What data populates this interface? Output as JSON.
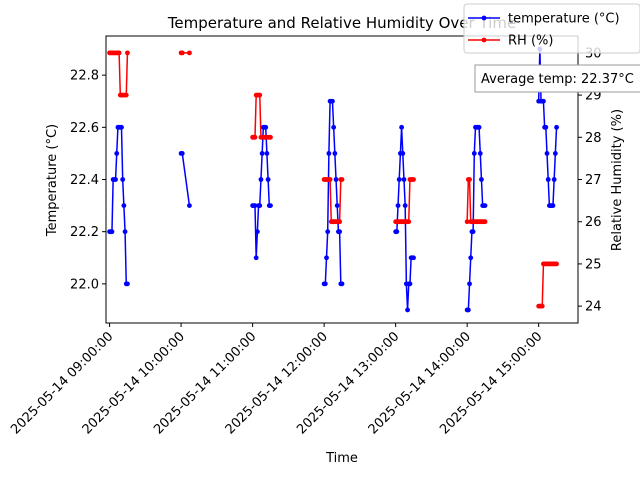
{
  "chart_data": {
    "type": "line",
    "title": "Temperature and Relative Humidity Over Time",
    "xlabel": "Time",
    "ylabel_left": "Temperature (°C)",
    "ylabel_right": "Relative Humidity (%)",
    "x_range": [
      "2025-05-14 08:57:00",
      "2025-05-14 15:33:00"
    ],
    "ylim_left": [
      21.85,
      22.95
    ],
    "ylim_right": [
      23.6,
      30.4
    ],
    "x_ticks": [
      "2025-05-14 09:00:00",
      "2025-05-14 10:00:00",
      "2025-05-14 11:00:00",
      "2025-05-14 12:00:00",
      "2025-05-14 13:00:00",
      "2025-05-14 14:00:00",
      "2025-05-14 15:00:00"
    ],
    "y_ticks_left": [
      "22.0",
      "22.2",
      "22.4",
      "22.6",
      "22.8"
    ],
    "y_ticks_right": [
      "24",
      "25",
      "26",
      "27",
      "28",
      "29",
      "30"
    ],
    "grid": false,
    "legend_position": "top-right",
    "annotation": "Average temp: 22.37°C",
    "series": [
      {
        "name": "temperature (°C)",
        "axis": "left",
        "color": "#0000ff",
        "marker": "circle",
        "segments": [
          {
            "x": [
              "2025-05-14 09:00:00",
              "2025-05-14 09:01:00",
              "2025-05-14 09:02:00",
              "2025-05-14 09:03:00",
              "2025-05-14 09:04:00",
              "2025-05-14 09:05:00",
              "2025-05-14 09:06:00",
              "2025-05-14 09:07:00",
              "2025-05-14 09:08:00",
              "2025-05-14 09:09:00",
              "2025-05-14 09:10:00",
              "2025-05-14 09:11:00",
              "2025-05-14 09:12:00",
              "2025-05-14 09:13:00",
              "2025-05-14 09:14:00",
              "2025-05-14 09:15:00"
            ],
            "y": [
              22.2,
              22.2,
              22.2,
              22.4,
              22.4,
              22.4,
              22.5,
              22.6,
              22.6,
              22.6,
              22.6,
              22.4,
              22.3,
              22.2,
              22.0,
              22.0
            ]
          },
          {
            "x": [
              "2025-05-14 10:00:00",
              "2025-05-14 10:01:00",
              "2025-05-14 10:07:00"
            ],
            "y": [
              22.5,
              22.5,
              22.3
            ]
          },
          {
            "x": [
              "2025-05-14 11:00:00",
              "2025-05-14 11:01:00",
              "2025-05-14 11:02:00",
              "2025-05-14 11:03:00",
              "2025-05-14 11:04:00",
              "2025-05-14 11:05:00",
              "2025-05-14 11:06:00",
              "2025-05-14 11:07:00",
              "2025-05-14 11:08:00",
              "2025-05-14 11:09:00",
              "2025-05-14 11:10:00",
              "2025-05-14 11:11:00",
              "2025-05-14 11:12:00",
              "2025-05-14 11:13:00",
              "2025-05-14 11:14:00",
              "2025-05-14 11:15:00"
            ],
            "y": [
              22.3,
              22.3,
              22.3,
              22.1,
              22.2,
              22.3,
              22.3,
              22.4,
              22.5,
              22.6,
              22.6,
              22.6,
              22.5,
              22.4,
              22.3,
              22.3
            ]
          },
          {
            "x": [
              "2025-05-14 12:00:00",
              "2025-05-14 12:01:00",
              "2025-05-14 12:02:00",
              "2025-05-14 12:03:00",
              "2025-05-14 12:04:00",
              "2025-05-14 12:05:00",
              "2025-05-14 12:06:00",
              "2025-05-14 12:07:00",
              "2025-05-14 12:08:00",
              "2025-05-14 12:09:00",
              "2025-05-14 12:10:00",
              "2025-05-14 12:11:00",
              "2025-05-14 12:12:00",
              "2025-05-14 12:13:00",
              "2025-05-14 12:14:00",
              "2025-05-14 12:15:00"
            ],
            "y": [
              22.0,
              22.0,
              22.1,
              22.2,
              22.5,
              22.7,
              22.7,
              22.7,
              22.6,
              22.5,
              22.4,
              22.3,
              22.2,
              22.2,
              22.0,
              22.0
            ]
          },
          {
            "x": [
              "2025-05-14 13:00:00",
              "2025-05-14 13:01:00",
              "2025-05-14 13:02:00",
              "2025-05-14 13:03:00",
              "2025-05-14 13:04:00",
              "2025-05-14 13:05:00",
              "2025-05-14 13:06:00",
              "2025-05-14 13:07:00",
              "2025-05-14 13:08:00",
              "2025-05-14 13:09:00",
              "2025-05-14 13:10:00",
              "2025-05-14 13:11:00",
              "2025-05-14 13:12:00",
              "2025-05-14 13:13:00",
              "2025-05-14 13:14:00",
              "2025-05-14 13:15:00"
            ],
            "y": [
              22.2,
              22.2,
              22.3,
              22.4,
              22.5,
              22.6,
              22.5,
              22.4,
              22.3,
              22.0,
              21.9,
              22.0,
              22.0,
              22.1,
              22.1,
              22.1
            ]
          },
          {
            "x": [
              "2025-05-14 14:00:00",
              "2025-05-14 14:01:00",
              "2025-05-14 14:02:00",
              "2025-05-14 14:03:00",
              "2025-05-14 14:04:00",
              "2025-05-14 14:05:00",
              "2025-05-14 14:06:00",
              "2025-05-14 14:07:00",
              "2025-05-14 14:08:00",
              "2025-05-14 14:09:00",
              "2025-05-14 14:10:00",
              "2025-05-14 14:11:00",
              "2025-05-14 14:12:00",
              "2025-05-14 14:13:00",
              "2025-05-14 14:14:00",
              "2025-05-14 14:15:00"
            ],
            "y": [
              21.9,
              21.9,
              22.0,
              22.1,
              22.2,
              22.2,
              22.5,
              22.6,
              22.6,
              22.6,
              22.6,
              22.5,
              22.4,
              22.3,
              22.3,
              22.3
            ]
          },
          {
            "x": [
              "2025-05-14 15:00:00",
              "2025-05-14 15:01:00",
              "2025-05-14 15:02:00",
              "2025-05-14 15:03:00",
              "2025-05-14 15:04:00",
              "2025-05-14 15:05:00",
              "2025-05-14 15:06:00",
              "2025-05-14 15:07:00",
              "2025-05-14 15:08:00",
              "2025-05-14 15:09:00",
              "2025-05-14 15:10:00",
              "2025-05-14 15:11:00",
              "2025-05-14 15:12:00",
              "2025-05-14 15:13:00",
              "2025-05-14 15:14:00",
              "2025-05-14 15:15:00"
            ],
            "y": [
              22.7,
              22.9,
              22.7,
              22.7,
              22.7,
              22.6,
              22.6,
              22.5,
              22.4,
              22.3,
              22.3,
              22.3,
              22.3,
              22.4,
              22.5,
              22.6
            ]
          }
        ]
      },
      {
        "name": "RH (%)",
        "axis": "right",
        "color": "#ff0000",
        "marker": "circle",
        "segments": [
          {
            "x": [
              "2025-05-14 09:00:00",
              "2025-05-14 09:01:00",
              "2025-05-14 09:02:00",
              "2025-05-14 09:03:00",
              "2025-05-14 09:04:00",
              "2025-05-14 09:05:00",
              "2025-05-14 09:06:00",
              "2025-05-14 09:07:00",
              "2025-05-14 09:08:00",
              "2025-05-14 09:09:00",
              "2025-05-14 09:10:00",
              "2025-05-14 09:11:00",
              "2025-05-14 09:12:00",
              "2025-05-14 09:13:00",
              "2025-05-14 09:14:00",
              "2025-05-14 09:15:00"
            ],
            "y": [
              30,
              30,
              30,
              30,
              30,
              30,
              30,
              30,
              30,
              29,
              29,
              29,
              29,
              29,
              29,
              30
            ]
          },
          {
            "x": [
              "2025-05-14 10:00:00",
              "2025-05-14 10:01:00",
              "2025-05-14 10:07:00"
            ],
            "y": [
              30,
              30,
              30
            ]
          },
          {
            "x": [
              "2025-05-14 11:00:00",
              "2025-05-14 11:01:00",
              "2025-05-14 11:02:00",
              "2025-05-14 11:03:00",
              "2025-05-14 11:04:00",
              "2025-05-14 11:05:00",
              "2025-05-14 11:06:00",
              "2025-05-14 11:07:00",
              "2025-05-14 11:08:00",
              "2025-05-14 11:09:00",
              "2025-05-14 11:10:00",
              "2025-05-14 11:11:00",
              "2025-05-14 11:12:00",
              "2025-05-14 11:13:00",
              "2025-05-14 11:14:00",
              "2025-05-14 11:15:00"
            ],
            "y": [
              28,
              28,
              28,
              29,
              29,
              29,
              29,
              28,
              28,
              28,
              28,
              28,
              28,
              28,
              28,
              28
            ]
          },
          {
            "x": [
              "2025-05-14 12:00:00",
              "2025-05-14 12:01:00",
              "2025-05-14 12:02:00",
              "2025-05-14 12:03:00",
              "2025-05-14 12:04:00",
              "2025-05-14 12:05:00",
              "2025-05-14 12:06:00",
              "2025-05-14 12:07:00",
              "2025-05-14 12:08:00",
              "2025-05-14 12:09:00",
              "2025-05-14 12:10:00",
              "2025-05-14 12:11:00",
              "2025-05-14 12:12:00",
              "2025-05-14 12:13:00",
              "2025-05-14 12:14:00",
              "2025-05-14 12:15:00"
            ],
            "y": [
              27,
              27,
              27,
              27,
              27,
              27,
              26,
              26,
              26,
              26,
              26,
              26,
              26,
              26,
              27,
              27
            ]
          },
          {
            "x": [
              "2025-05-14 13:00:00",
              "2025-05-14 13:01:00",
              "2025-05-14 13:02:00",
              "2025-05-14 13:03:00",
              "2025-05-14 13:04:00",
              "2025-05-14 13:05:00",
              "2025-05-14 13:06:00",
              "2025-05-14 13:07:00",
              "2025-05-14 13:08:00",
              "2025-05-14 13:09:00",
              "2025-05-14 13:10:00",
              "2025-05-14 13:11:00",
              "2025-05-14 13:12:00",
              "2025-05-14 13:13:00",
              "2025-05-14 13:14:00",
              "2025-05-14 13:15:00"
            ],
            "y": [
              26,
              26,
              26,
              26,
              26,
              26,
              26,
              26,
              26,
              26,
              26,
              26,
              27,
              27,
              27,
              27
            ]
          },
          {
            "x": [
              "2025-05-14 14:00:00",
              "2025-05-14 14:01:00",
              "2025-05-14 14:02:00",
              "2025-05-14 14:03:00",
              "2025-05-14 14:04:00",
              "2025-05-14 14:05:00",
              "2025-05-14 14:06:00",
              "2025-05-14 14:07:00",
              "2025-05-14 14:08:00",
              "2025-05-14 14:09:00",
              "2025-05-14 14:10:00",
              "2025-05-14 14:11:00",
              "2025-05-14 14:12:00",
              "2025-05-14 14:13:00",
              "2025-05-14 14:14:00",
              "2025-05-14 14:15:00"
            ],
            "y": [
              26,
              27,
              27,
              26,
              26,
              26,
              26,
              26,
              26,
              26,
              26,
              26,
              26,
              26,
              26,
              26
            ]
          },
          {
            "x": [
              "2025-05-14 15:00:00",
              "2025-05-14 15:01:00",
              "2025-05-14 15:02:00",
              "2025-05-14 15:03:00",
              "2025-05-14 15:04:00",
              "2025-05-14 15:05:00",
              "2025-05-14 15:06:00",
              "2025-05-14 15:07:00",
              "2025-05-14 15:08:00",
              "2025-05-14 15:09:00",
              "2025-05-14 15:10:00",
              "2025-05-14 15:11:00",
              "2025-05-14 15:12:00",
              "2025-05-14 15:13:00",
              "2025-05-14 15:14:00",
              "2025-05-14 15:15:00"
            ],
            "y": [
              24,
              24,
              24,
              24,
              25,
              25,
              25,
              25,
              25,
              25,
              25,
              25,
              25,
              25,
              25,
              25
            ]
          }
        ]
      }
    ]
  }
}
